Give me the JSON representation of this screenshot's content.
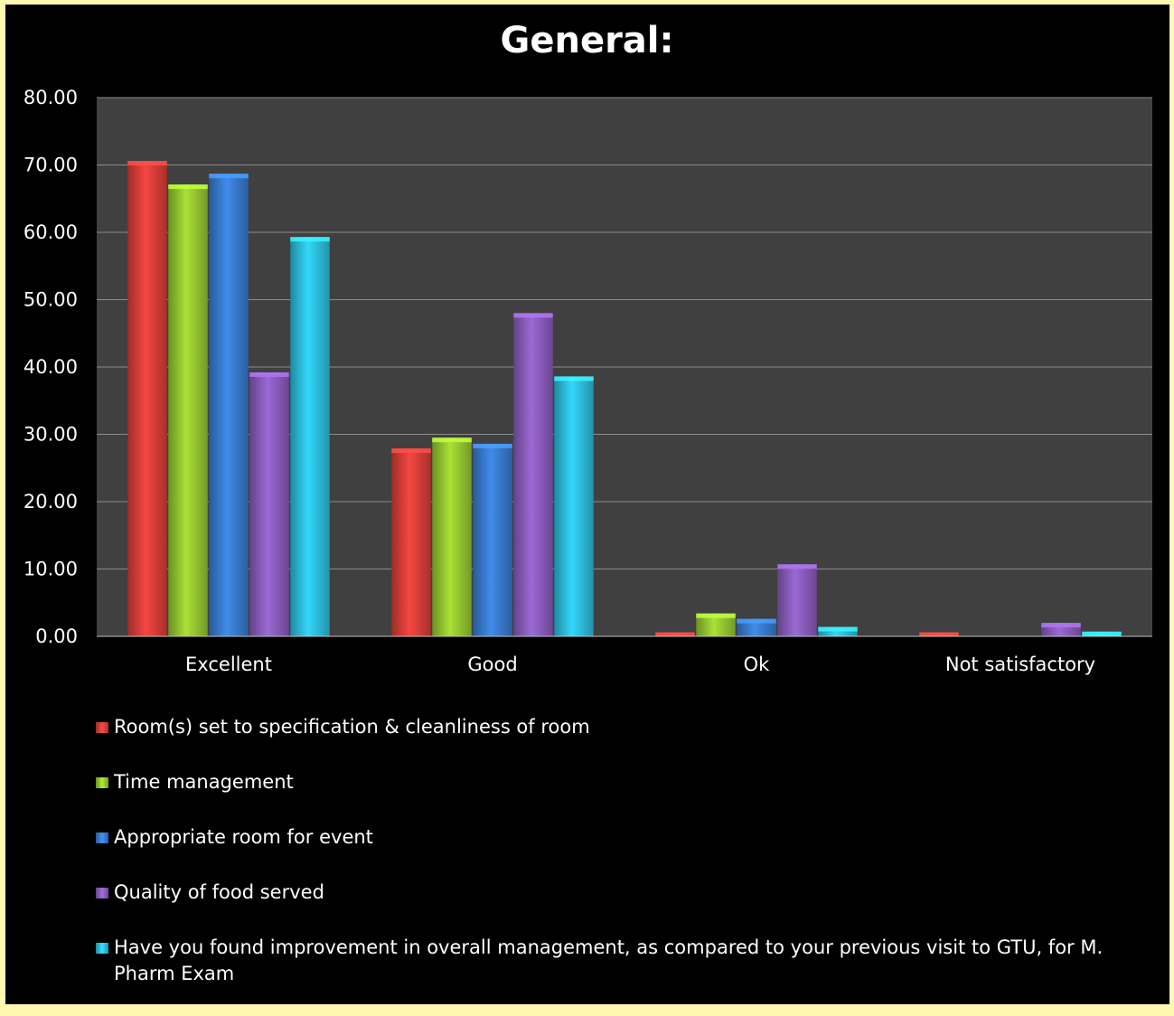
{
  "chart_data": {
    "type": "bar",
    "title": "General:",
    "categories": [
      "Excellent",
      "Good",
      "Ok",
      "Not satisfactory"
    ],
    "ylim": [
      0,
      80
    ],
    "yticks": [
      "0.00",
      "10.00",
      "20.00",
      "30.00",
      "40.00",
      "50.00",
      "60.00",
      "70.00",
      "80.00"
    ],
    "grid": true,
    "legend_position": "bottom",
    "series": [
      {
        "name": "Room(s) set to specification &  cleanliness of room",
        "color": "#e0403a",
        "values": [
          70.6,
          27.9,
          0.6,
          0.6
        ]
      },
      {
        "name": "Time management",
        "color": "#9acd32",
        "values": [
          67.1,
          29.5,
          3.4,
          0.0
        ]
      },
      {
        "name": "Appropriate room for event",
        "color": "#3a7fd5",
        "values": [
          68.7,
          28.6,
          2.6,
          0.0
        ]
      },
      {
        "name": "Quality of food served",
        "color": "#8e5fc2",
        "values": [
          39.2,
          48.0,
          10.7,
          2.0
        ]
      },
      {
        "name": "Have you found improvement in overall management, as compared to your previous visit to GTU, for M. Pharm Exam",
        "color": "#2ec4e4",
        "values": [
          59.3,
          38.6,
          1.4,
          0.7
        ]
      }
    ]
  }
}
